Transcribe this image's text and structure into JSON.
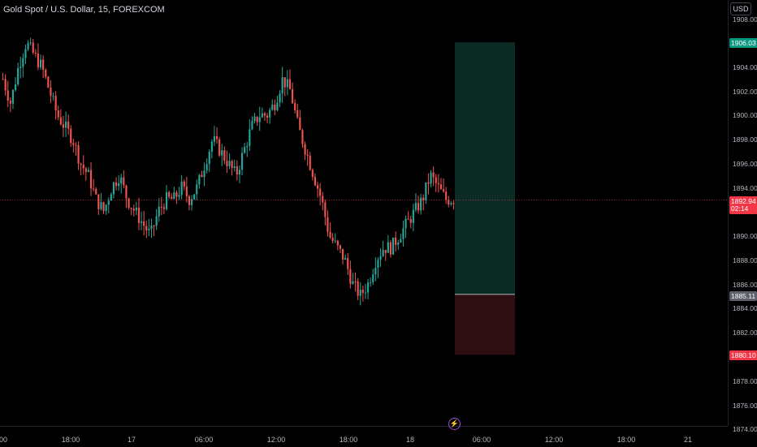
{
  "header": {
    "symbol_title": "Gold Spot / U.S. Dollar, 15, FOREXCOM"
  },
  "currency_button": "USD",
  "colors": {
    "up": "#26a69a",
    "down": "#ef5350",
    "bg": "#000000",
    "profit_zone": "#0d2b25",
    "loss_zone": "#2d0f12"
  },
  "y_axis": {
    "labels": [
      "1908.00",
      "1904.00",
      "1902.00",
      "1900.00",
      "1898.00",
      "1896.00",
      "1894.00",
      "1890.00",
      "1888.00",
      "1886.00",
      "1884.00",
      "1882.00",
      "1878.00",
      "1876.00",
      "1874.00"
    ]
  },
  "price_tags": {
    "target": "1906.03",
    "current": "1892.94",
    "countdown": "02:14",
    "entry": "1885.11",
    "stop": "1880.10"
  },
  "x_axis": {
    "labels": [
      "00",
      "18:00",
      "17",
      "06:00",
      "12:00",
      "18:00",
      "18",
      "06:00",
      "12:00",
      "18:00",
      "21"
    ]
  },
  "position_tool": {
    "target": 1906.03,
    "entry": 1885.11,
    "stop": 1880.1
  },
  "icons": {
    "replay": "lightning-icon"
  },
  "chart_data": {
    "type": "candlestick",
    "title": "Gold Spot / U.S. Dollar, 15, FOREXCOM",
    "ylim": [
      1874,
      1909
    ],
    "approx_closes": [
      1903,
      1901,
      1904,
      1906,
      1905,
      1904,
      1902,
      1900,
      1899,
      1898,
      1896,
      1895,
      1893,
      1892,
      1894,
      1895,
      1893,
      1892,
      1891,
      1890,
      1892,
      1893,
      1893,
      1894,
      1893,
      1894,
      1896,
      1898,
      1897,
      1896,
      1895,
      1897,
      1899,
      1900,
      1900,
      1901,
      1903,
      1902,
      1899,
      1897,
      1895,
      1893,
      1890,
      1889,
      1888,
      1886,
      1885,
      1886,
      1888,
      1889,
      1889,
      1890,
      1891,
      1892,
      1893,
      1895,
      1894,
      1893,
      1893
    ]
  }
}
